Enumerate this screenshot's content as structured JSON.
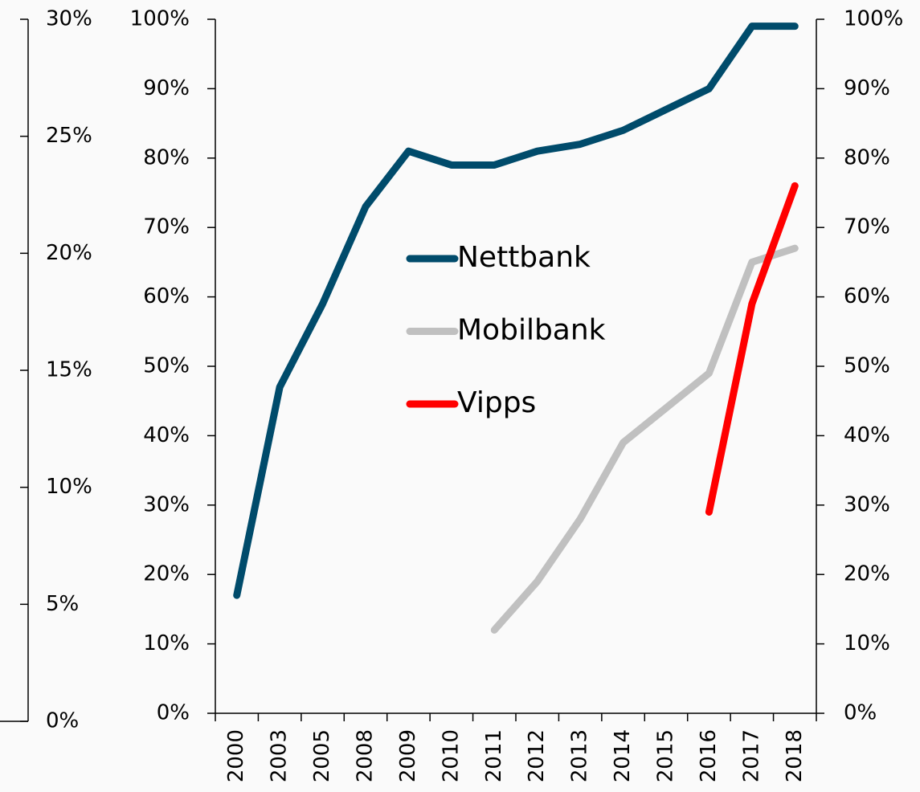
{
  "chart_data": {
    "type": "line",
    "categories": [
      "2000",
      "2003",
      "2005",
      "2008",
      "2009",
      "2010",
      "2011",
      "2012",
      "2013",
      "2014",
      "2015",
      "2016",
      "2017",
      "2018"
    ],
    "series": [
      {
        "name": "Nettbank",
        "color": "#004b6b",
        "values": [
          17,
          47,
          59,
          73,
          81,
          79,
          79,
          81,
          82,
          84,
          87,
          90,
          99,
          99
        ]
      },
      {
        "name": "Mobilbank",
        "color": "#c0c0c0",
        "values": [
          null,
          null,
          null,
          null,
          null,
          null,
          12,
          19,
          28,
          39,
          44,
          49,
          65,
          67
        ]
      },
      {
        "name": "Vipps",
        "color": "#ff0000",
        "values": [
          null,
          null,
          null,
          null,
          null,
          null,
          null,
          null,
          null,
          null,
          null,
          29,
          59,
          76
        ]
      }
    ],
    "ylim": [
      0,
      100
    ],
    "yticks": [
      {
        "value": 0,
        "label": "0%"
      },
      {
        "value": 10,
        "label": "10%"
      },
      {
        "value": 20,
        "label": "20%"
      },
      {
        "value": 30,
        "label": "30%"
      },
      {
        "value": 40,
        "label": "40%"
      },
      {
        "value": 50,
        "label": "50%"
      },
      {
        "value": 60,
        "label": "60%"
      },
      {
        "value": 70,
        "label": "70%"
      },
      {
        "value": 80,
        "label": "80%"
      },
      {
        "value": 90,
        "label": "90%"
      },
      {
        "value": 100,
        "label": "100%"
      }
    ],
    "y2lim": [
      0,
      30
    ],
    "y2ticks": [
      {
        "value": 0,
        "label": "0%"
      },
      {
        "value": 5,
        "label": "5%"
      },
      {
        "value": 10,
        "label": "10%"
      },
      {
        "value": 15,
        "label": "15%"
      },
      {
        "value": 20,
        "label": "20%"
      },
      {
        "value": 25,
        "label": "25%"
      },
      {
        "value": 30,
        "label": "30%"
      }
    ],
    "grid": false
  }
}
